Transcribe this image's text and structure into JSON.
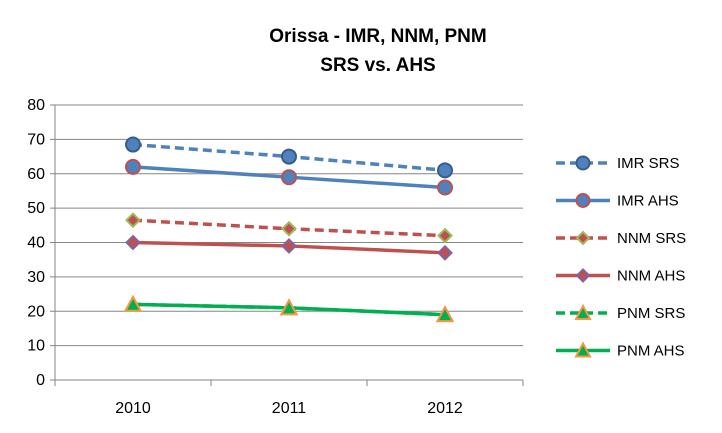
{
  "chart_data": {
    "type": "line",
    "title": "Orissa - IMR, NNM, PNM",
    "subtitle": "SRS vs. AHS",
    "categories": [
      "2010",
      "2011",
      "2012"
    ],
    "xlabel": "",
    "ylabel": "",
    "ylim": [
      0,
      80
    ],
    "yticks": [
      "0",
      "10",
      "20",
      "30",
      "40",
      "50",
      "60",
      "70",
      "80"
    ],
    "grid": "horizontal",
    "legend": "right",
    "series": [
      {
        "name": "IMR SRS",
        "values": [
          68.5,
          65,
          61
        ],
        "color": "#4F81BD",
        "dash": true,
        "marker": "circle",
        "marker_fill": "#4F81BD",
        "marker_stroke": "#385D8A"
      },
      {
        "name": "IMR AHS",
        "values": [
          62,
          59,
          56
        ],
        "color": "#4F81BD",
        "dash": false,
        "marker": "circle",
        "marker_fill": "#4F81BD",
        "marker_stroke": "#C0504D"
      },
      {
        "name": "NNM SRS",
        "values": [
          46.5,
          44,
          42
        ],
        "color": "#C0504D",
        "dash": true,
        "marker": "diamond",
        "marker_fill": "#C0504D",
        "marker_stroke": "#9BBB59"
      },
      {
        "name": "NNM AHS",
        "values": [
          40,
          39,
          37
        ],
        "color": "#C0504D",
        "dash": false,
        "marker": "diamond",
        "marker_fill": "#C0504D",
        "marker_stroke": "#8064A2"
      },
      {
        "name": "PNM SRS",
        "values": [
          22,
          21,
          19
        ],
        "color": "#00B050",
        "dash": true,
        "marker": "triangle",
        "marker_fill": "#00B050",
        "marker_stroke": "#F79646"
      },
      {
        "name": "PNM AHS",
        "values": [
          22,
          21,
          19
        ],
        "color": "#00B050",
        "dash": false,
        "marker": "triangle",
        "marker_fill": "#00B050",
        "marker_stroke": "#F79646"
      }
    ]
  }
}
